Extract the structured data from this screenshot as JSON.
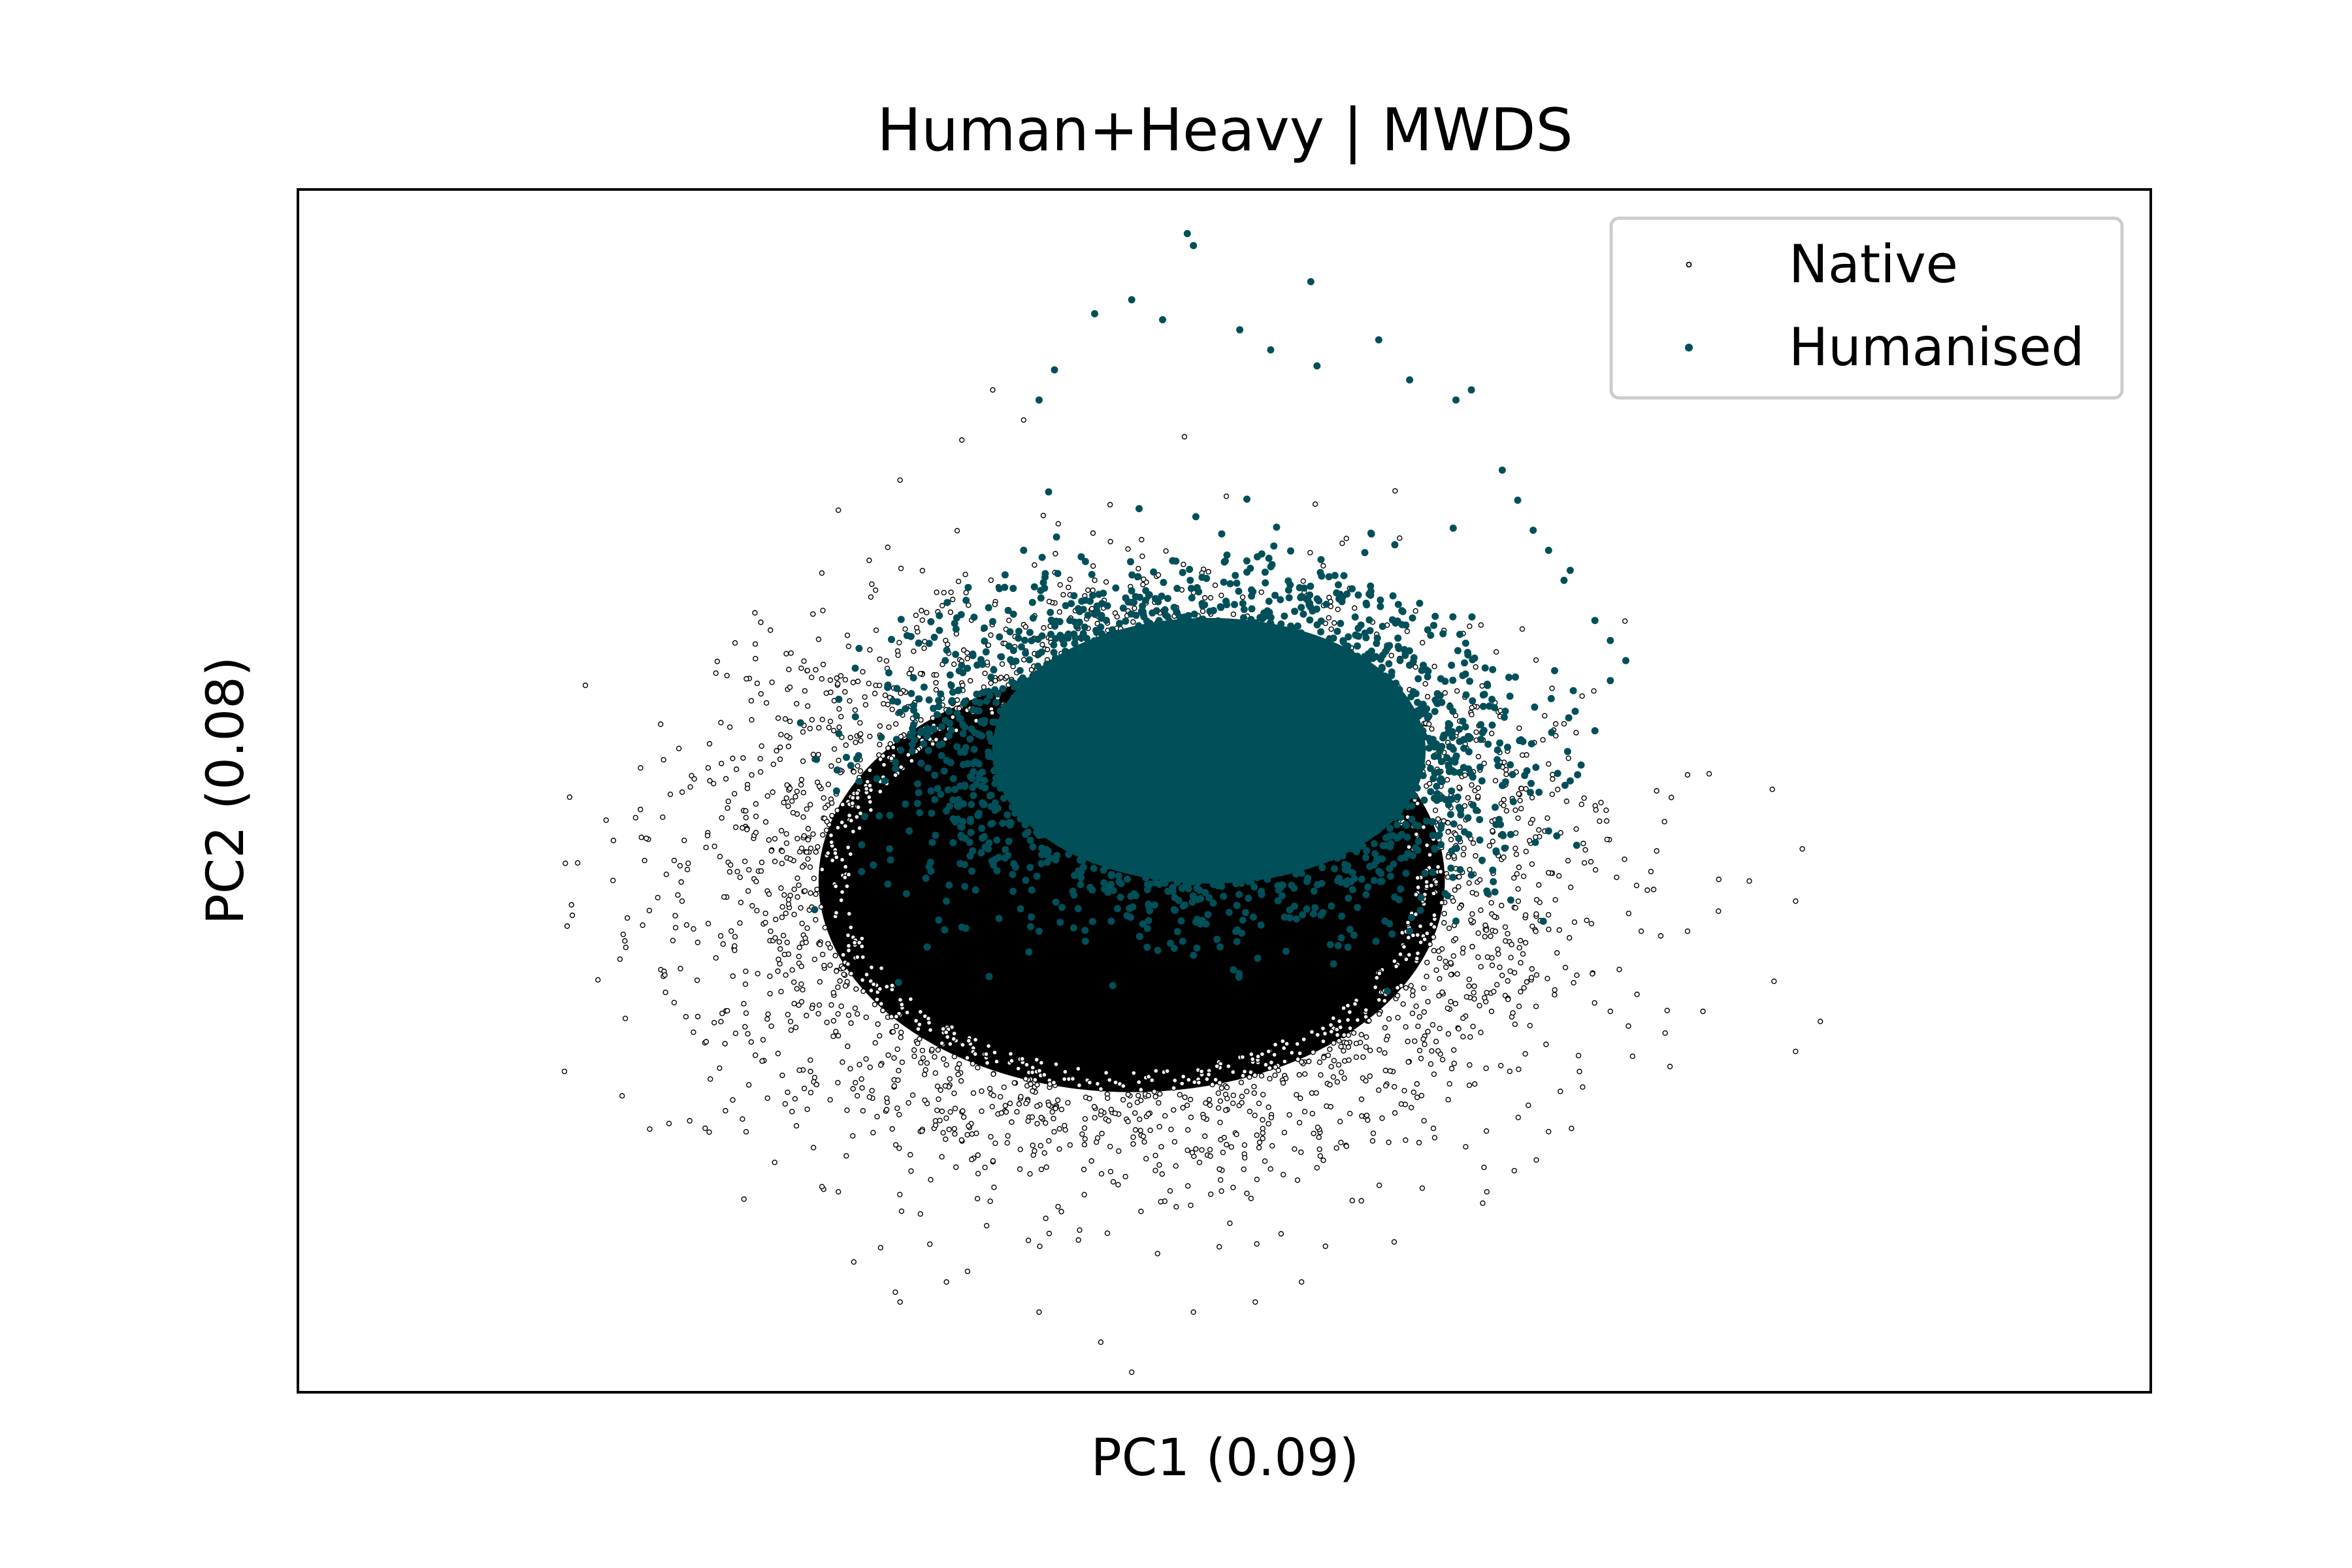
{
  "chart_data": {
    "type": "scatter",
    "title": "Human+Heavy | MWDS",
    "xlabel": "PC1 (0.09)",
    "ylabel": "PC2 (0.08)",
    "xlim": [
      -3.0,
      3.0
    ],
    "ylim": [
      -3.0,
      3.0
    ],
    "ticks": "none",
    "grid": false,
    "legend_position": "top-right",
    "colors": {
      "native": "#000000",
      "humanised": "#004f59"
    },
    "series": [
      {
        "name": "Native",
        "marker": "hollow-circle",
        "color": "#000000",
        "dense_cloud": {
          "center": [
            -0.3,
            -0.45
          ],
          "radius": [
            1.3,
            1.35
          ]
        },
        "points": [
          [
            -1.25,
            1.4
          ],
          [
            -1.15,
            1.15
          ],
          [
            -1.3,
            0.9
          ],
          [
            -1.45,
            0.2
          ],
          [
            -1.5,
            -0.4
          ],
          [
            -1.55,
            -0.9
          ],
          [
            -1.4,
            -1.6
          ],
          [
            -1.25,
            -2.0
          ],
          [
            -1.2,
            -2.35
          ],
          [
            -1.05,
            -2.55
          ],
          [
            -0.9,
            -2.45
          ],
          [
            -0.6,
            -2.6
          ],
          [
            -0.4,
            -2.75
          ],
          [
            -0.3,
            -2.9
          ],
          [
            -0.1,
            -2.6
          ],
          [
            0.1,
            -2.55
          ],
          [
            0.25,
            -2.45
          ],
          [
            0.55,
            -2.25
          ],
          [
            0.85,
            -2.0
          ],
          [
            1.05,
            -1.7
          ],
          [
            1.15,
            -1.4
          ],
          [
            1.25,
            -1.1
          ],
          [
            1.35,
            -0.7
          ],
          [
            1.4,
            -0.3
          ],
          [
            1.5,
            -0.7
          ],
          [
            1.55,
            -1.1
          ],
          [
            1.6,
            -0.6
          ],
          [
            1.4,
            0.0
          ],
          [
            1.5,
            0.08
          ],
          [
            1.7,
            -0.45
          ],
          [
            1.85,
            -0.55
          ],
          [
            1.78,
            -0.95
          ],
          [
            1.93,
            -1.15
          ],
          [
            1.85,
            -1.3
          ],
          [
            -0.75,
            2.0
          ],
          [
            -0.85,
            1.75
          ],
          [
            -1.05,
            1.55
          ],
          [
            -0.65,
            1.85
          ],
          [
            -1.35,
            0.6
          ],
          [
            -1.55,
            -0.1
          ]
        ]
      },
      {
        "name": "Humanised",
        "marker": "filled-circle",
        "color": "#004f59",
        "dense_cloud": {
          "center": [
            -0.05,
            0.2
          ],
          "radius": [
            0.9,
            0.85
          ]
        },
        "points": [
          [
            -0.12,
            2.78
          ],
          [
            -0.1,
            2.72
          ],
          [
            0.28,
            2.54
          ],
          [
            -0.3,
            2.45
          ],
          [
            -0.42,
            2.38
          ],
          [
            -0.2,
            2.35
          ],
          [
            0.05,
            2.3
          ],
          [
            0.5,
            2.25
          ],
          [
            -0.55,
            2.1
          ],
          [
            -0.6,
            1.95
          ],
          [
            0.75,
            1.95
          ],
          [
            0.8,
            2.0
          ],
          [
            0.6,
            2.05
          ],
          [
            0.9,
            1.6
          ],
          [
            0.95,
            1.45
          ],
          [
            1.0,
            1.3
          ],
          [
            1.1,
            1.05
          ],
          [
            1.2,
            0.85
          ],
          [
            1.25,
            0.75
          ],
          [
            1.3,
            0.65
          ],
          [
            1.25,
            0.55
          ],
          [
            1.13,
            0.5
          ],
          [
            1.12,
            1.1
          ],
          [
            1.05,
            1.2
          ],
          [
            1.12,
            0.05
          ],
          [
            1.2,
            0.3
          ],
          [
            1.05,
            -0.2
          ],
          [
            0.85,
            -0.5
          ],
          [
            0.75,
            -0.65
          ],
          [
            0.6,
            -0.7
          ],
          [
            0.4,
            -0.78
          ],
          [
            0.2,
            -0.8
          ],
          [
            -0.1,
            -0.82
          ],
          [
            -0.25,
            -0.78
          ],
          [
            -0.45,
            -0.75
          ],
          [
            -0.6,
            -0.7
          ],
          [
            -0.85,
            -0.68
          ],
          [
            -0.9,
            -0.55
          ],
          [
            -0.95,
            -0.4
          ],
          [
            -0.9,
            -0.1
          ],
          [
            -0.95,
            0.0
          ],
          [
            -1.1,
            0.05
          ],
          [
            -0.8,
            0.4
          ],
          [
            -0.7,
            0.9
          ],
          [
            -0.65,
            1.2
          ],
          [
            0.52,
            -0.65
          ],
          [
            0.88,
            -0.3
          ],
          [
            0.98,
            0.1
          ],
          [
            0.3,
            2.12
          ],
          [
            0.15,
            2.2
          ]
        ]
      }
    ]
  }
}
